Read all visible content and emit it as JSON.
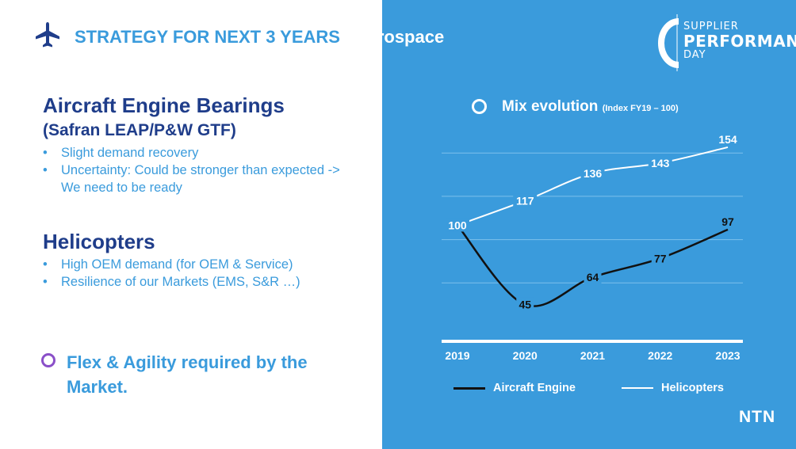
{
  "header": {
    "title_main": "STRATEGY FOR NEXT 3 YEARS ",
    "title_suffix": "- Aerospace"
  },
  "section1": {
    "heading": "Aircraft Engine Bearings",
    "subheading": "(Safran LEAP/P&W GTF)",
    "bullets": [
      "Slight demand recovery",
      "Uncertainty: Could be stronger than expected -> We need to be ready"
    ]
  },
  "section2": {
    "heading": "Helicopters",
    "bullets": [
      "High OEM demand (for OEM & Service)",
      "Resilience of our Markets (EMS, S&R …)"
    ]
  },
  "callout": "Flex & Agility required by the Market.",
  "logo": {
    "line1": "SUPPLIER",
    "line2": "PERFORMANCE",
    "line3": "DAY"
  },
  "brand": "NTN",
  "chart_data": {
    "type": "line",
    "title": "Mix evolution",
    "subtitle": "(Index FY19 – 100)",
    "x": [
      "2019",
      "2020",
      "2021",
      "2022",
      "2023"
    ],
    "series": [
      {
        "name": "Aircraft Engine",
        "values": [
          100,
          45,
          64,
          77,
          97
        ],
        "color": "#111111"
      },
      {
        "name": "Helicopters",
        "values": [
          100,
          117,
          136,
          143,
          154
        ],
        "color": "#ffffff"
      }
    ],
    "ylim": [
      30,
      160
    ],
    "grid": true,
    "legend_position": "bottom"
  },
  "colors": {
    "accent": "#3a9bdc",
    "heading": "#1f3d8a",
    "panel": "#3a9bdc"
  },
  "icons": {
    "plane": "airplane-icon",
    "ring": "ring-bullet-icon"
  }
}
